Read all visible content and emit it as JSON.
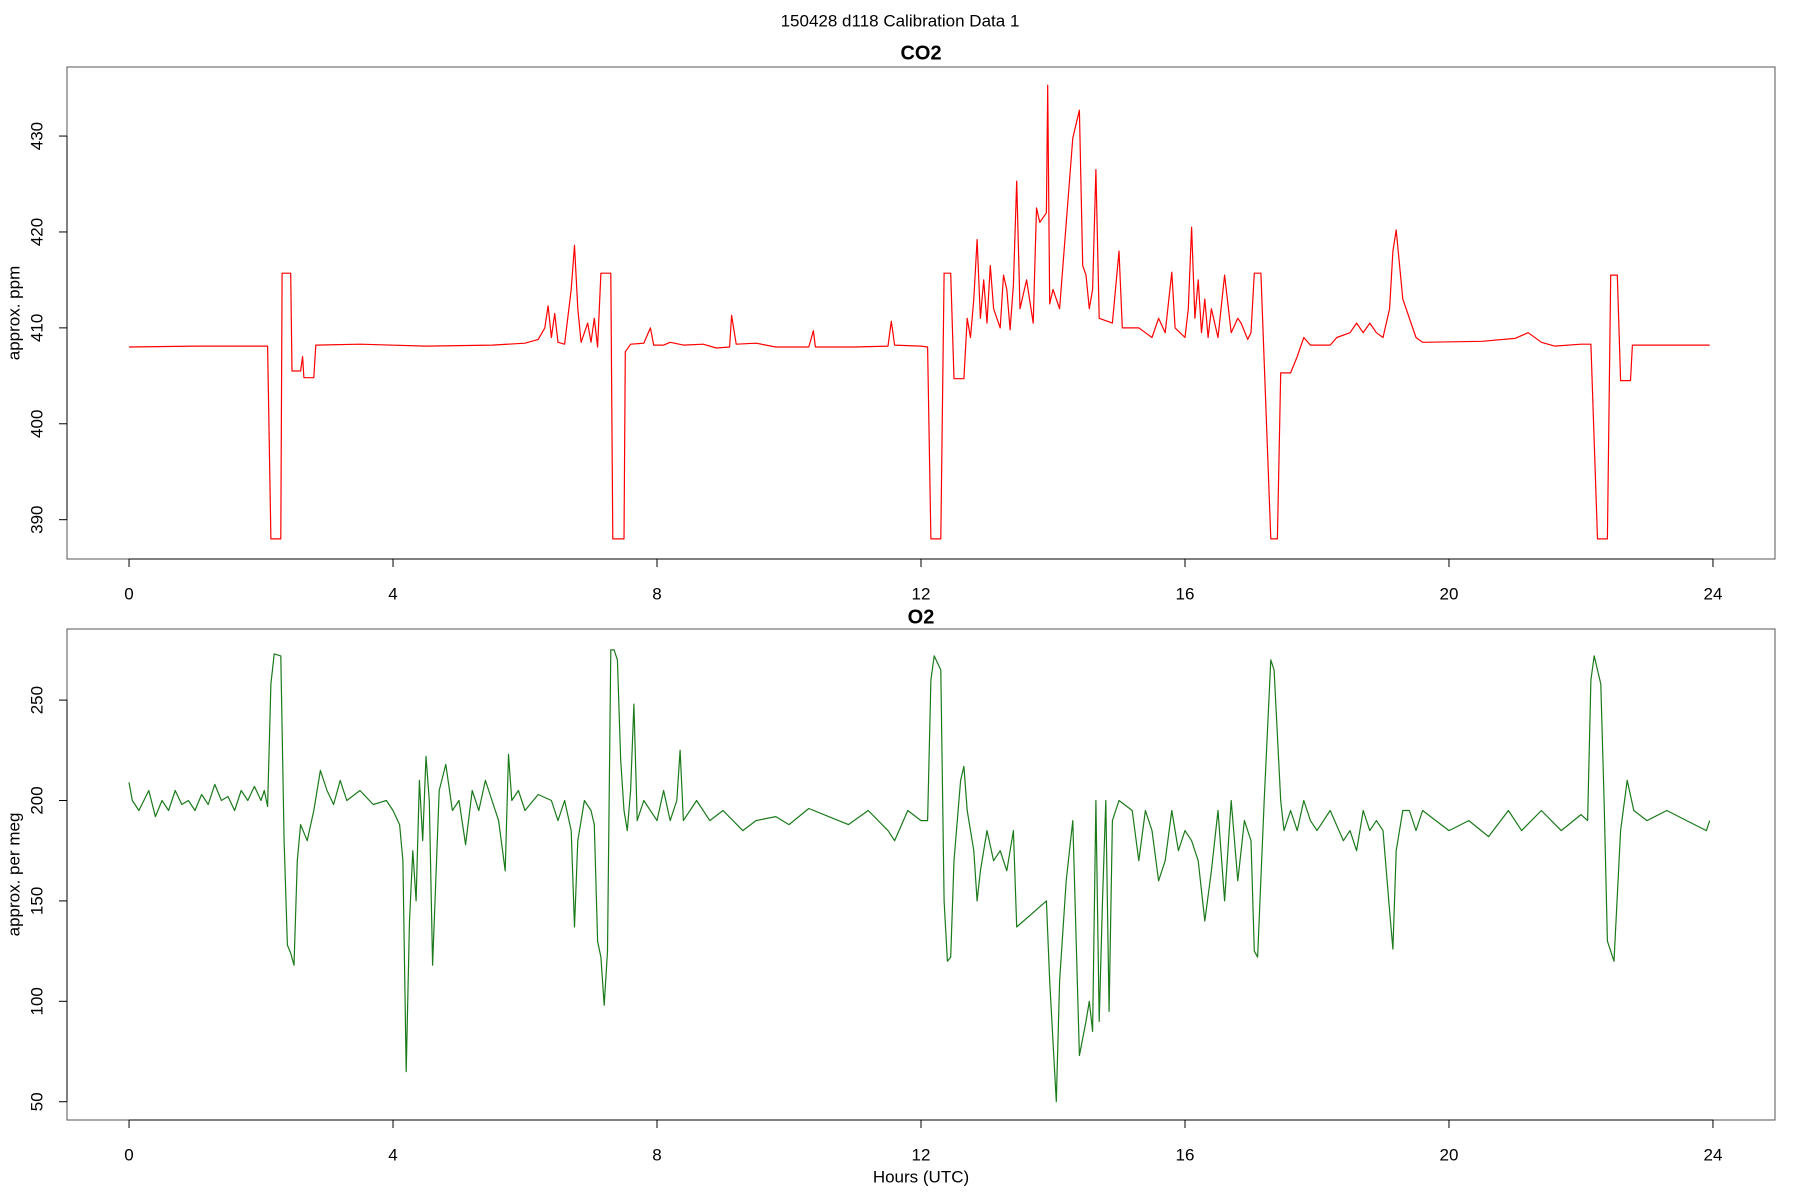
{
  "title": "150428   d118   Calibration Data 1",
  "chart_data": [
    {
      "type": "line",
      "title": "CO2",
      "ylabel": "approx. ppm",
      "color": "#ff0000",
      "xlim": [
        -0.94,
        24.94
      ],
      "xticks": [
        0,
        4,
        8,
        12,
        16,
        20,
        24
      ],
      "ylim": [
        385.9,
        437.2
      ],
      "yticks": [
        390,
        400,
        410,
        420,
        430
      ],
      "x": [
        0,
        1,
        2.1,
        2.15,
        2.3,
        2.32,
        2.45,
        2.47,
        2.6,
        2.63,
        2.65,
        2.8,
        2.83,
        3.5,
        4.5,
        5.5,
        6.0,
        6.2,
        6.3,
        6.35,
        6.4,
        6.45,
        6.5,
        6.6,
        6.7,
        6.75,
        6.8,
        6.85,
        6.95,
        7.0,
        7.05,
        7.1,
        7.15,
        7.3,
        7.33,
        7.5,
        7.52,
        7.6,
        7.8,
        7.9,
        7.95,
        8.1,
        8.2,
        8.4,
        8.7,
        8.9,
        9.1,
        9.13,
        9.2,
        9.5,
        9.8,
        10.3,
        10.37,
        10.4,
        11.0,
        11.5,
        11.55,
        11.6,
        12.0,
        12.1,
        12.15,
        12.3,
        12.35,
        12.45,
        12.5,
        12.65,
        12.7,
        12.75,
        12.8,
        12.85,
        12.9,
        12.95,
        13.0,
        13.05,
        13.1,
        13.2,
        13.25,
        13.3,
        13.35,
        13.4,
        13.45,
        13.5,
        13.6,
        13.7,
        13.75,
        13.8,
        13.9,
        13.92,
        13.95,
        14.0,
        14.1,
        14.3,
        14.4,
        14.45,
        14.5,
        14.55,
        14.6,
        14.65,
        14.7,
        14.9,
        15.0,
        15.05,
        15.3,
        15.4,
        15.5,
        15.6,
        15.7,
        15.8,
        15.85,
        16.0,
        16.05,
        16.1,
        16.15,
        16.2,
        16.25,
        16.3,
        16.35,
        16.4,
        16.5,
        16.6,
        16.7,
        16.8,
        16.85,
        16.95,
        17.0,
        17.05,
        17.15,
        17.3,
        17.4,
        17.45,
        17.6,
        17.7,
        17.8,
        17.9,
        18.2,
        18.3,
        18.5,
        18.6,
        18.7,
        18.8,
        18.9,
        19.0,
        19.1,
        19.15,
        19.2,
        19.3,
        19.5,
        19.6,
        20.5,
        21.0,
        21.2,
        21.4,
        21.6,
        22.0,
        22.15,
        22.25,
        22.4,
        22.45,
        22.55,
        22.6,
        22.75,
        22.78,
        23.5,
        23.95
      ],
      "values": [
        408,
        408.1,
        408.1,
        388,
        388,
        415.7,
        415.7,
        405.5,
        405.5,
        407,
        404.8,
        404.8,
        408.2,
        408.3,
        408.1,
        408.2,
        408.4,
        408.8,
        410,
        412.3,
        409,
        411.5,
        408.5,
        408.3,
        414,
        418.6,
        412,
        408.5,
        410.5,
        408.5,
        411,
        408,
        415.7,
        415.7,
        388,
        388,
        407.5,
        408.3,
        408.4,
        410,
        408.2,
        408.2,
        408.5,
        408.2,
        408.3,
        407.9,
        408,
        411.3,
        408.3,
        408.4,
        408,
        408,
        409.7,
        408,
        408,
        408.1,
        410.7,
        408.2,
        408.1,
        408,
        388,
        388,
        415.7,
        415.7,
        404.7,
        404.7,
        411,
        409,
        413,
        419.2,
        411,
        415,
        410.5,
        416.5,
        412,
        410,
        415.5,
        414,
        409.8,
        414.5,
        425.3,
        412,
        415,
        410.5,
        422.5,
        421,
        422,
        435.3,
        412.5,
        414,
        412,
        429.8,
        432.7,
        416.5,
        415.5,
        412,
        414,
        426.5,
        411,
        410.5,
        418,
        410,
        410,
        409.5,
        409,
        411,
        409.5,
        415.8,
        410,
        409,
        412,
        420.5,
        411,
        415,
        409.5,
        413,
        409,
        412,
        409,
        415.5,
        409.5,
        411,
        410.5,
        408.8,
        409.5,
        415.7,
        415.7,
        388,
        388,
        405.3,
        405.3,
        407,
        409,
        408.2,
        408.2,
        409,
        409.5,
        410.5,
        409.5,
        410.5,
        409.5,
        409,
        412,
        418,
        420.2,
        413,
        409,
        408.5,
        408.6,
        408.9,
        409.5,
        408.5,
        408.1,
        408.3,
        408.3,
        388,
        388,
        415.5,
        415.5,
        404.5,
        404.5,
        408.2,
        408.2,
        408.2
      ]
    },
    {
      "type": "line",
      "title": "O2",
      "ylabel": "approx. per meg",
      "xlabel": "Hours (UTC)",
      "color": "#1a7a1a",
      "xlim": [
        -0.94,
        24.94
      ],
      "xticks": [
        0,
        4,
        8,
        12,
        16,
        20,
        24
      ],
      "ylim": [
        40.9,
        285.4
      ],
      "yticks": [
        50,
        100,
        150,
        200,
        250
      ],
      "x": [
        0,
        0.05,
        0.15,
        0.3,
        0.4,
        0.5,
        0.6,
        0.7,
        0.8,
        0.9,
        1.0,
        1.1,
        1.2,
        1.3,
        1.4,
        1.5,
        1.6,
        1.7,
        1.8,
        1.9,
        2.0,
        2.05,
        2.1,
        2.15,
        2.2,
        2.3,
        2.35,
        2.4,
        2.45,
        2.5,
        2.55,
        2.6,
        2.7,
        2.8,
        2.9,
        3.0,
        3.1,
        3.2,
        3.3,
        3.5,
        3.7,
        3.9,
        4.0,
        4.1,
        4.15,
        4.2,
        4.25,
        4.3,
        4.35,
        4.4,
        4.45,
        4.5,
        4.55,
        4.6,
        4.7,
        4.8,
        4.9,
        5.0,
        5.1,
        5.2,
        5.3,
        5.4,
        5.5,
        5.6,
        5.7,
        5.75,
        5.8,
        5.9,
        6.0,
        6.2,
        6.4,
        6.5,
        6.6,
        6.7,
        6.75,
        6.8,
        6.9,
        7.0,
        7.05,
        7.1,
        7.15,
        7.2,
        7.25,
        7.3,
        7.35,
        7.4,
        7.45,
        7.5,
        7.55,
        7.6,
        7.65,
        7.7,
        7.8,
        8.0,
        8.1,
        8.2,
        8.3,
        8.35,
        8.4,
        8.6,
        8.8,
        9.0,
        9.3,
        9.5,
        9.8,
        10.0,
        10.3,
        10.6,
        10.9,
        11.2,
        11.5,
        11.6,
        11.8,
        12.0,
        12.1,
        12.15,
        12.2,
        12.3,
        12.35,
        12.4,
        12.45,
        12.5,
        12.6,
        12.65,
        12.7,
        12.8,
        12.85,
        12.9,
        13.0,
        13.1,
        13.2,
        13.3,
        13.4,
        13.45,
        13.9,
        13.95,
        14.0,
        14.05,
        14.1,
        14.2,
        14.3,
        14.4,
        14.5,
        14.55,
        14.6,
        14.65,
        14.7,
        14.75,
        14.8,
        14.85,
        14.9,
        15.0,
        15.2,
        15.3,
        15.4,
        15.5,
        15.6,
        15.7,
        15.8,
        15.9,
        16.0,
        16.1,
        16.2,
        16.3,
        16.4,
        16.5,
        16.6,
        16.7,
        16.8,
        16.9,
        17.0,
        17.05,
        17.1,
        17.2,
        17.3,
        17.35,
        17.45,
        17.5,
        17.6,
        17.7,
        17.8,
        17.9,
        18.0,
        18.2,
        18.4,
        18.5,
        18.6,
        18.7,
        18.8,
        18.9,
        19.0,
        19.1,
        19.15,
        19.2,
        19.3,
        19.4,
        19.5,
        19.6,
        19.8,
        20.0,
        20.3,
        20.6,
        20.9,
        21.1,
        21.4,
        21.7,
        22.0,
        22.1,
        22.15,
        22.2,
        22.3,
        22.35,
        22.4,
        22.5,
        22.6,
        22.7,
        22.8,
        23.0,
        23.3,
        23.6,
        23.9,
        23.95
      ],
      "values": [
        209,
        200,
        195,
        205,
        192,
        200,
        195,
        205,
        198,
        200,
        195,
        203,
        198,
        208,
        200,
        202,
        195,
        205,
        200,
        207,
        200,
        205,
        197,
        258,
        273,
        272,
        180,
        128,
        124,
        118,
        170,
        188,
        180,
        195,
        215,
        205,
        198,
        210,
        200,
        205,
        198,
        200,
        195,
        188,
        170,
        65,
        140,
        175,
        150,
        210,
        180,
        222,
        200,
        118,
        205,
        218,
        195,
        200,
        178,
        205,
        195,
        210,
        200,
        190,
        165,
        223,
        200,
        205,
        195,
        203,
        200,
        190,
        200,
        185,
        137,
        180,
        200,
        195,
        188,
        130,
        122,
        98,
        125,
        275,
        275,
        270,
        220,
        195,
        185,
        205,
        248,
        190,
        200,
        190,
        205,
        190,
        200,
        225,
        190,
        200,
        190,
        195,
        185,
        190,
        192,
        188,
        196,
        192,
        188,
        195,
        185,
        180,
        195,
        190,
        190,
        260,
        272,
        265,
        150,
        120,
        122,
        170,
        210,
        217,
        195,
        175,
        150,
        165,
        185,
        170,
        175,
        165,
        185,
        137,
        150,
        110,
        80,
        50,
        110,
        160,
        190,
        73,
        90,
        100,
        85,
        200,
        90,
        150,
        200,
        95,
        190,
        200,
        195,
        170,
        195,
        185,
        160,
        170,
        195,
        175,
        185,
        180,
        170,
        140,
        165,
        195,
        150,
        200,
        160,
        190,
        180,
        125,
        122,
        200,
        270,
        265,
        200,
        185,
        195,
        185,
        200,
        190,
        185,
        195,
        180,
        185,
        175,
        195,
        185,
        190,
        185,
        145,
        126,
        175,
        195,
        195,
        185,
        195,
        190,
        185,
        190,
        182,
        195,
        185,
        195,
        185,
        193,
        190,
        260,
        272,
        258,
        200,
        130,
        120,
        185,
        210,
        195,
        190,
        195,
        190,
        185,
        190
      ]
    }
  ]
}
